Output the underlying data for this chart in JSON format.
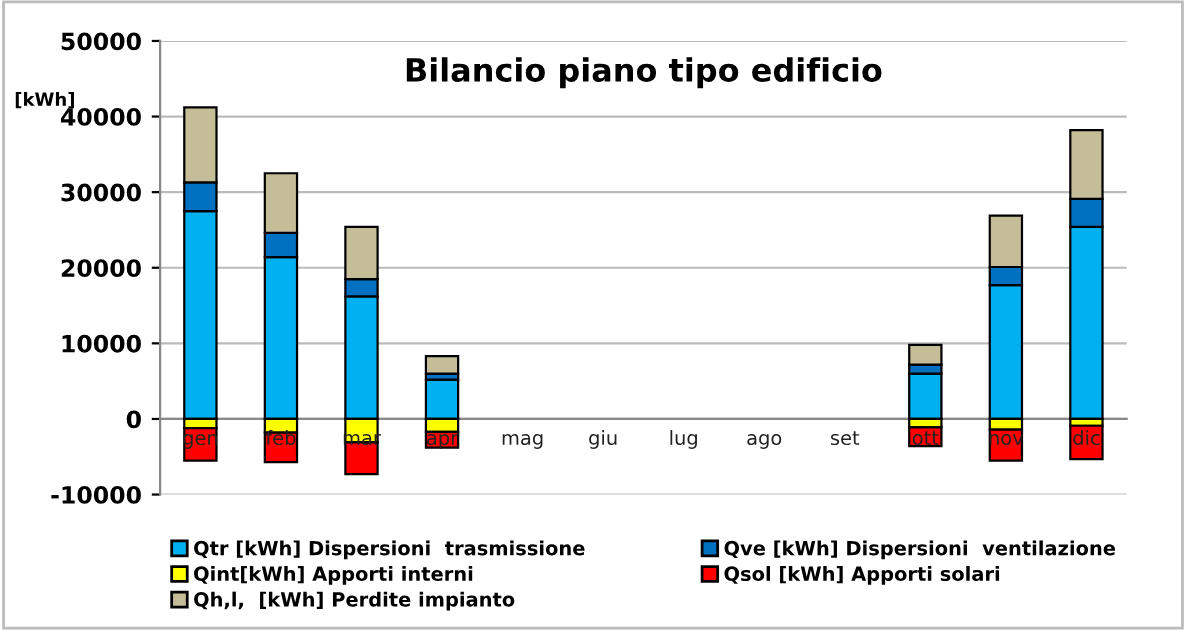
{
  "chart_data": {
    "type": "bar",
    "stacked": true,
    "title": "Bilancio piano tipo edificio",
    "ylabel": "[kWh]",
    "categories": [
      "gen",
      "feb",
      "mar",
      "apr",
      "mag",
      "giu",
      "lug",
      "ago",
      "set",
      "ott",
      "nov",
      "dic"
    ],
    "series": [
      {
        "name": "Qtr [kWh] Dispersioni  trasmissione",
        "color": "#00b0f0",
        "values": [
          27500,
          21400,
          16200,
          5200,
          null,
          null,
          null,
          null,
          null,
          6000,
          17700,
          25400
        ]
      },
      {
        "name": "Qve [kWh] Dispersioni  ventilazione",
        "color": "#0070c0",
        "values": [
          3800,
          3200,
          2300,
          800,
          null,
          null,
          null,
          null,
          null,
          1200,
          2400,
          3700
        ]
      },
      {
        "name": "Qint[kWh] Apporti interni",
        "color": "#ffff00",
        "values": [
          -1200,
          -1800,
          -3100,
          -1700,
          null,
          null,
          null,
          null,
          null,
          -1100,
          -1400,
          -900
        ]
      },
      {
        "name": "Qsol [kWh] Apporti solari",
        "color": "#ff0000",
        "values": [
          -4300,
          -3900,
          -4200,
          -2100,
          null,
          null,
          null,
          null,
          null,
          -2500,
          -4100,
          -4400
        ]
      },
      {
        "name": "Qh,l,  [kWh] Perdite impianto",
        "color": "#c4bd97",
        "values": [
          9900,
          7900,
          6900,
          2300,
          null,
          null,
          null,
          null,
          null,
          2600,
          6800,
          9100
        ]
      }
    ],
    "ylim": [
      -10000,
      50000
    ],
    "yticks": [
      -10000,
      0,
      10000,
      20000,
      30000,
      40000,
      50000
    ],
    "grid": "y",
    "legend": "bottom"
  }
}
